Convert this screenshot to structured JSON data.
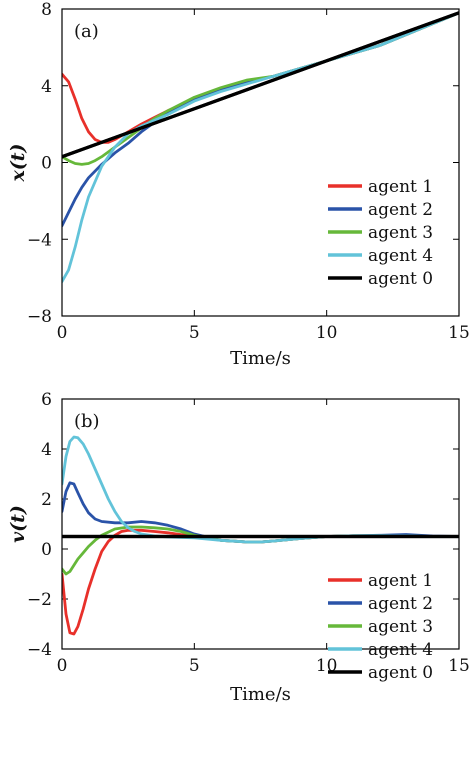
{
  "chart_data": [
    {
      "type": "line",
      "panel_label": "(a)",
      "xlabel": "Time/s",
      "ylabel": "x(t)",
      "xlim": [
        0,
        15
      ],
      "ylim": [
        -8,
        8
      ],
      "xticks": [
        0,
        5,
        10,
        15
      ],
      "yticks": [
        -8,
        -4,
        0,
        4,
        8
      ],
      "grid": false,
      "legend_position": "lower-right",
      "series": [
        {
          "name": "agent 1",
          "color": "#e8302a",
          "x": [
            0,
            0.25,
            0.5,
            0.75,
            1.0,
            1.25,
            1.5,
            1.75,
            2.0,
            2.5,
            3.0,
            3.5,
            4.0,
            5.0,
            6.0,
            7.0,
            8.0,
            9.0,
            10.0,
            12.0,
            15.0
          ],
          "y": [
            4.6,
            4.2,
            3.3,
            2.3,
            1.6,
            1.2,
            1.05,
            1.05,
            1.2,
            1.6,
            2.0,
            2.35,
            2.7,
            3.3,
            3.8,
            4.2,
            4.5,
            4.9,
            5.3,
            6.1,
            7.8
          ]
        },
        {
          "name": "agent 2",
          "color": "#2a53a8",
          "x": [
            0,
            0.25,
            0.5,
            0.75,
            1.0,
            1.5,
            2.0,
            2.5,
            3.0,
            3.5,
            4.0,
            5.0,
            6.0,
            7.0,
            8.0,
            9.0,
            10.0,
            12.0,
            15.0
          ],
          "y": [
            -3.3,
            -2.6,
            -1.9,
            -1.3,
            -0.8,
            -0.1,
            0.5,
            1.0,
            1.6,
            2.1,
            2.6,
            3.3,
            3.8,
            4.2,
            4.5,
            4.9,
            5.3,
            6.1,
            7.8
          ]
        },
        {
          "name": "agent 3",
          "color": "#66b83a",
          "x": [
            0,
            0.25,
            0.5,
            0.75,
            1.0,
            1.25,
            1.5,
            2.0,
            2.5,
            3.0,
            3.5,
            4.0,
            5.0,
            6.0,
            7.0,
            8.0,
            9.0,
            10.0,
            12.0,
            15.0
          ],
          "y": [
            0.3,
            0.1,
            -0.05,
            -0.1,
            -0.05,
            0.1,
            0.3,
            0.8,
            1.3,
            1.8,
            2.3,
            2.7,
            3.4,
            3.9,
            4.3,
            4.5,
            4.9,
            5.3,
            6.1,
            7.8
          ]
        },
        {
          "name": "agent 4",
          "color": "#62c3d9",
          "x": [
            0,
            0.25,
            0.5,
            0.75,
            1.0,
            1.5,
            2.0,
            2.5,
            3.0,
            3.5,
            4.0,
            5.0,
            6.0,
            7.0,
            8.0,
            9.0,
            10.0,
            12.0,
            15.0
          ],
          "y": [
            -6.2,
            -5.6,
            -4.4,
            -3.0,
            -1.8,
            -0.2,
            0.8,
            1.5,
            1.9,
            2.2,
            2.5,
            3.2,
            3.7,
            4.1,
            4.5,
            4.9,
            5.3,
            6.1,
            7.8
          ]
        },
        {
          "name": "agent 0",
          "color": "#000000",
          "x": [
            0,
            15
          ],
          "y": [
            0.3,
            7.8
          ]
        }
      ]
    },
    {
      "type": "line",
      "panel_label": "(b)",
      "xlabel": "Time/s",
      "ylabel": "v(t)",
      "xlim": [
        0,
        15
      ],
      "ylim": [
        -4,
        6
      ],
      "xticks": [
        0,
        5,
        10,
        15
      ],
      "yticks": [
        -4,
        -2,
        0,
        2,
        4,
        6
      ],
      "grid": false,
      "legend_position": "lower-right",
      "series": [
        {
          "name": "agent 1",
          "color": "#e8302a",
          "x": [
            0,
            0.15,
            0.3,
            0.45,
            0.6,
            0.8,
            1.0,
            1.25,
            1.5,
            1.75,
            2.0,
            2.25,
            2.5,
            3.0,
            3.5,
            4.0,
            5.0,
            6.0,
            7.0,
            7.5,
            8.0,
            9.0,
            10.0,
            11.0,
            12.0,
            13.0,
            14.0,
            15.0
          ],
          "y": [
            -1.0,
            -2.6,
            -3.35,
            -3.4,
            -3.1,
            -2.4,
            -1.6,
            -0.8,
            -0.1,
            0.3,
            0.55,
            0.7,
            0.75,
            0.75,
            0.7,
            0.65,
            0.5,
            0.35,
            0.28,
            0.28,
            0.32,
            0.42,
            0.5,
            0.53,
            0.53,
            0.52,
            0.5,
            0.5
          ]
        },
        {
          "name": "agent 2",
          "color": "#2a53a8",
          "x": [
            0,
            0.15,
            0.3,
            0.45,
            0.6,
            0.8,
            1.0,
            1.25,
            1.5,
            2.0,
            2.5,
            3.0,
            3.5,
            4.0,
            4.5,
            5.0,
            6.0,
            7.0,
            7.5,
            8.0,
            9.0,
            10.0,
            11.0,
            12.0,
            13.0,
            14.0,
            15.0
          ],
          "y": [
            1.5,
            2.3,
            2.65,
            2.6,
            2.25,
            1.8,
            1.45,
            1.2,
            1.1,
            1.05,
            1.05,
            1.1,
            1.05,
            0.95,
            0.8,
            0.6,
            0.35,
            0.28,
            0.28,
            0.32,
            0.42,
            0.5,
            0.53,
            0.55,
            0.58,
            0.52,
            0.5
          ]
        },
        {
          "name": "agent 3",
          "color": "#66b83a",
          "x": [
            0,
            0.15,
            0.3,
            0.45,
            0.6,
            0.8,
            1.0,
            1.25,
            1.5,
            2.0,
            2.5,
            3.0,
            3.5,
            4.0,
            4.5,
            5.0,
            6.0,
            7.0,
            7.5,
            8.0,
            9.0,
            10.0,
            11.0,
            12.0,
            13.0,
            14.0,
            15.0
          ],
          "y": [
            -0.8,
            -1.0,
            -0.9,
            -0.65,
            -0.4,
            -0.15,
            0.1,
            0.35,
            0.55,
            0.8,
            0.88,
            0.88,
            0.85,
            0.8,
            0.7,
            0.55,
            0.35,
            0.28,
            0.28,
            0.32,
            0.42,
            0.5,
            0.53,
            0.53,
            0.52,
            0.5,
            0.5
          ]
        },
        {
          "name": "agent 4",
          "color": "#62c3d9",
          "x": [
            0,
            0.15,
            0.3,
            0.45,
            0.6,
            0.8,
            1.0,
            1.25,
            1.5,
            1.75,
            2.0,
            2.25,
            2.5,
            2.75,
            3.0,
            3.5,
            4.0,
            5.0,
            6.0,
            7.0,
            7.5,
            8.0,
            9.0,
            10.0,
            11.0,
            12.0,
            13.0,
            14.0,
            15.0
          ],
          "y": [
            2.6,
            3.7,
            4.3,
            4.48,
            4.45,
            4.2,
            3.8,
            3.2,
            2.6,
            2.0,
            1.5,
            1.1,
            0.85,
            0.7,
            0.6,
            0.52,
            0.48,
            0.45,
            0.35,
            0.28,
            0.28,
            0.32,
            0.42,
            0.5,
            0.53,
            0.53,
            0.52,
            0.5,
            0.5
          ]
        },
        {
          "name": "agent 0",
          "color": "#000000",
          "x": [
            0,
            15
          ],
          "y": [
            0.5,
            0.5
          ]
        }
      ]
    }
  ]
}
